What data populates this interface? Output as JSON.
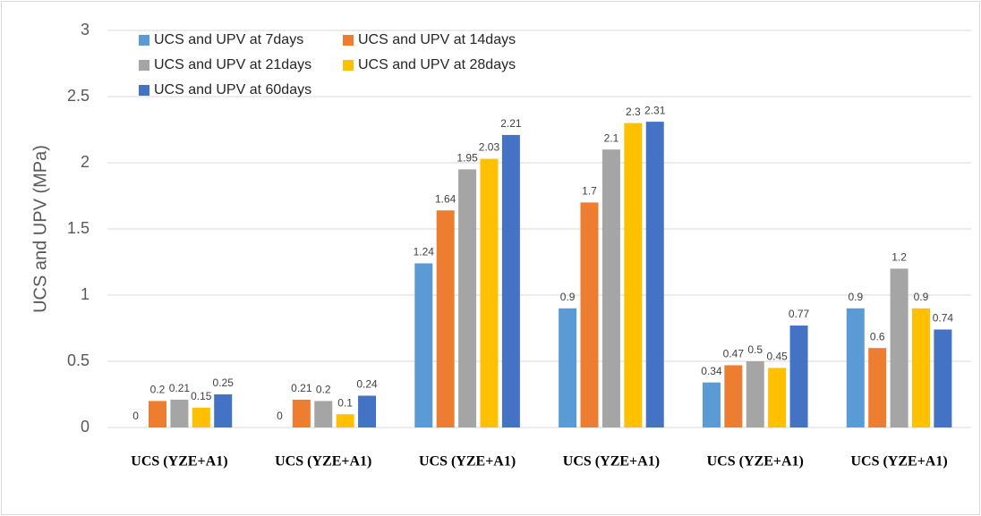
{
  "chart_data": {
    "type": "bar",
    "y_label": "UCS and UPV  (MPa)",
    "categories": [
      "UCS (YZE+A1)",
      "UCS (YZE+A1)",
      "UCS (YZE+A1)",
      "UCS (YZE+A1)",
      "UCS (YZE+A1)",
      "UCS (YZE+A1)"
    ],
    "series": [
      {
        "name": "UCS and UPV at 7days",
        "color": "#5b9bd5",
        "values": [
          0,
          0,
          1.24,
          0.9,
          0.34,
          0.9
        ]
      },
      {
        "name": "UCS and UPV at 14days",
        "color": "#ed7d31",
        "values": [
          0.2,
          0.21,
          1.64,
          1.7,
          0.47,
          0.6
        ]
      },
      {
        "name": "UCS and UPV at 21days",
        "color": "#a5a5a5",
        "values": [
          0.21,
          0.2,
          1.95,
          2.1,
          0.5,
          1.2
        ]
      },
      {
        "name": "UCS and UPV at 28days",
        "color": "#ffc000",
        "values": [
          0.15,
          0.1,
          2.03,
          2.3,
          0.45,
          0.9
        ]
      },
      {
        "name": "UCS and UPV at 60days",
        "color": "#4472c4",
        "values": [
          0.25,
          0.24,
          2.21,
          2.31,
          0.77,
          0.74
        ]
      }
    ],
    "ylim": [
      0,
      3
    ],
    "yticks": [
      0,
      0.5,
      1,
      1.5,
      2,
      2.5,
      3
    ],
    "grid": true,
    "legend": "top-left"
  }
}
